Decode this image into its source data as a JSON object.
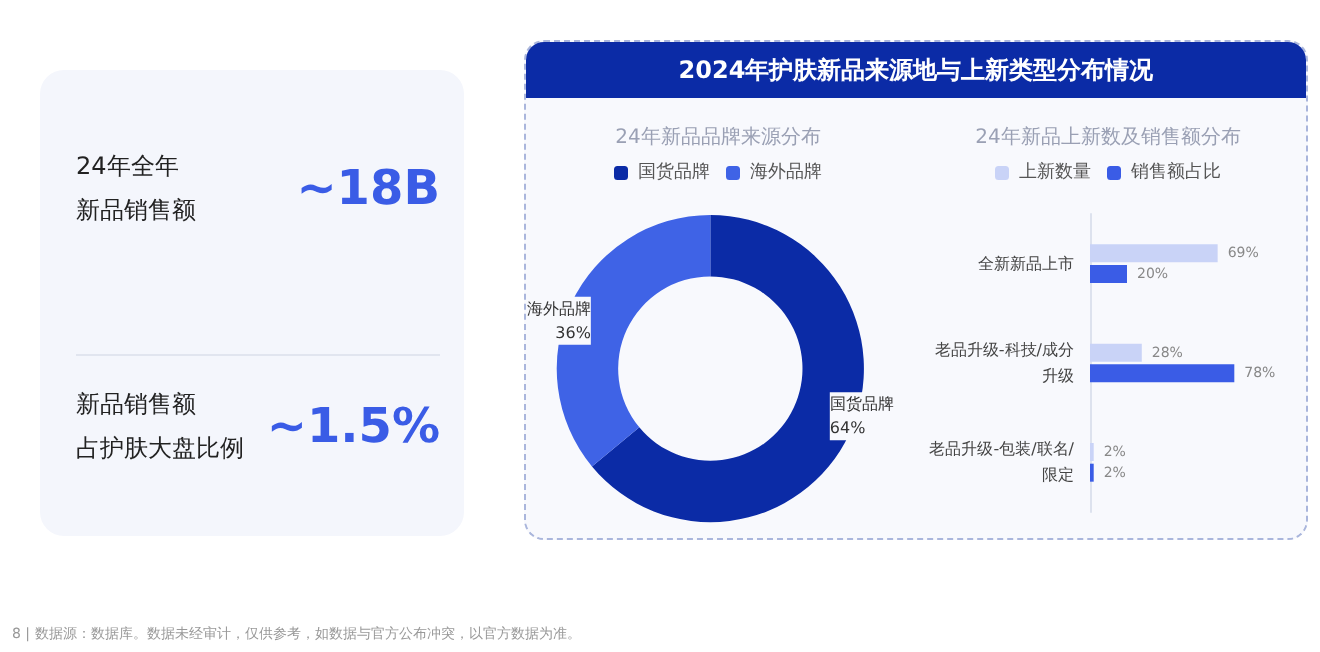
{
  "chart_data": [
    {
      "type": "other",
      "annotations": [
        "24年全年",
        "新品销售额",
        "~18B",
        "新品销售额",
        "占护肤大盘比例",
        "~1.5%"
      ]
    },
    {
      "type": "donut",
      "title": "2024年护肤新品来源地与上新类型分布情况",
      "subtitle": "24年新品品牌来源分布",
      "categories": [
        "国货品牌",
        "海外品牌"
      ],
      "values": [
        64,
        36
      ],
      "colors": [
        "#0b2ba6",
        "#3f63e6"
      ],
      "value_labels": [
        "64%",
        "36%"
      ],
      "legend": "top"
    },
    {
      "type": "bar",
      "orientation": "horizontal",
      "title": "24年新品上新数及销售额分布",
      "categories": [
        "全新新品上市",
        "老品升级-科技/成分升级",
        "老品升级-包装/联名/限定"
      ],
      "series": [
        {
          "name": "上新数量",
          "color": "#c9d3f7",
          "values": [
            69,
            28,
            2
          ],
          "value_labels": [
            "69%",
            "28%",
            "2%"
          ]
        },
        {
          "name": "销售额占比",
          "color": "#3a5ce6",
          "values": [
            20,
            78,
            2
          ],
          "value_labels": [
            "20%",
            "78%",
            "2%"
          ]
        }
      ],
      "legend": "top",
      "annotations": [
        "8 | 数据源：数据库。数据未经审计，仅供参考，如数据与官方公布冲突，以官方数据为准。"
      ]
    }
  ]
}
